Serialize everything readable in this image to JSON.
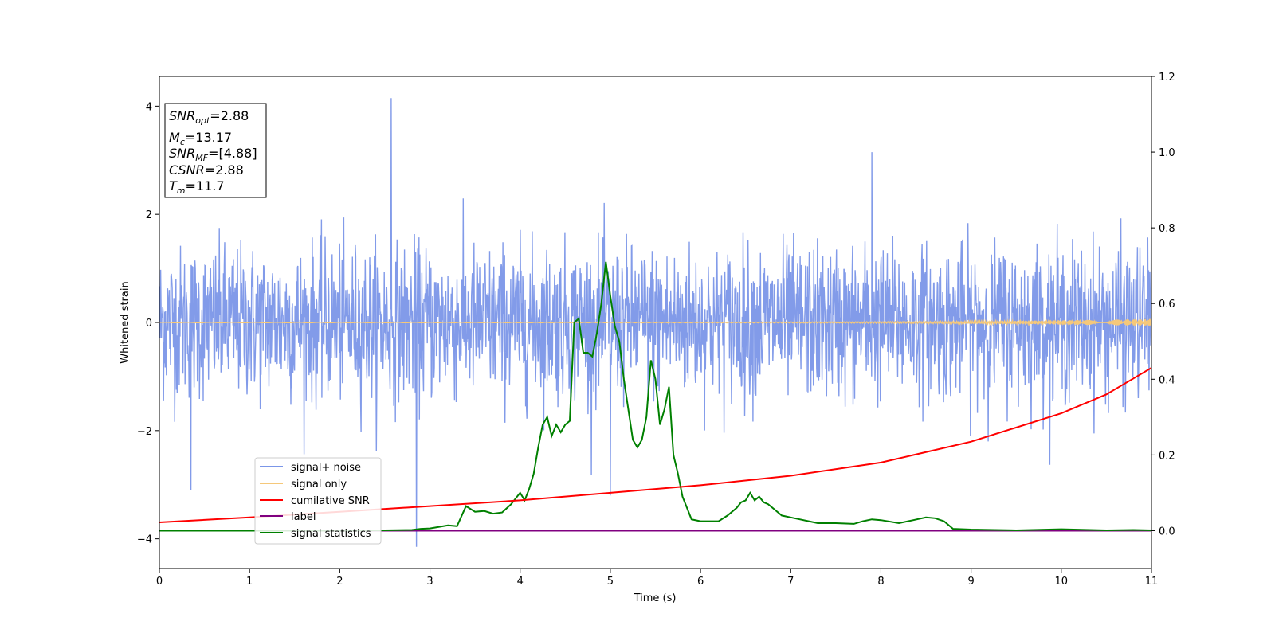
{
  "chart_data": {
    "type": "line",
    "xlabel": "Time (s)",
    "ylabel": "Whitened strain",
    "xlim": [
      0,
      11
    ],
    "ylim": [
      -4.55,
      4.55
    ],
    "y2lim": [
      -0.1,
      1.2
    ],
    "x_ticks": [
      "0",
      "1",
      "2",
      "3",
      "4",
      "5",
      "6",
      "7",
      "8",
      "9",
      "10",
      "11"
    ],
    "y_ticks": [
      "4",
      "2",
      "0",
      "−2",
      "−4"
    ],
    "y2_ticks": [
      "1.2",
      "1.0",
      "0.8",
      "0.6",
      "0.4",
      "0.2",
      "0.0"
    ],
    "grid": false,
    "legend_position": "lower-left",
    "colors": {
      "signal_noise": "#7b96e8",
      "signal_only": "#f5c87a",
      "cumulative_snr": "#ff0000",
      "label": "#800080",
      "signal_statistics": "#008000"
    },
    "series": [
      {
        "name": "signal+ noise",
        "axis": "left",
        "kind": "noise",
        "sigma": 0.7,
        "notable_peaks": [
          [
            2.57,
            4.15
          ],
          [
            2.85,
            -4.15
          ],
          [
            0.35,
            -3.1
          ],
          [
            5.0,
            -3.2
          ],
          [
            7.9,
            3.15
          ],
          [
            11.0,
            3.0
          ]
        ]
      },
      {
        "name": "signal only",
        "axis": "left",
        "x": [
          0,
          11
        ],
        "y": [
          0,
          0
        ]
      },
      {
        "name": "cumilative SNR",
        "axis": "right",
        "x": [
          0,
          1,
          2,
          3,
          4,
          5,
          6,
          7,
          8,
          9,
          10,
          10.5,
          11
        ],
        "y": [
          0.022,
          0.035,
          0.05,
          0.065,
          0.08,
          0.1,
          0.12,
          0.145,
          0.18,
          0.235,
          0.31,
          0.36,
          0.43
        ]
      },
      {
        "name": "label",
        "axis": "right",
        "x": [
          0,
          11
        ],
        "y": [
          0,
          0
        ]
      },
      {
        "name": "signal statistics",
        "axis": "right",
        "x": [
          0,
          0.5,
          1,
          1.5,
          2,
          2.5,
          2.8,
          2.9,
          3.0,
          3.2,
          3.3,
          3.4,
          3.5,
          3.6,
          3.7,
          3.8,
          3.9,
          4.0,
          4.05,
          4.1,
          4.15,
          4.2,
          4.25,
          4.3,
          4.35,
          4.4,
          4.45,
          4.5,
          4.55,
          4.6,
          4.65,
          4.7,
          4.75,
          4.8,
          4.85,
          4.9,
          4.95,
          5.0,
          5.05,
          5.1,
          5.15,
          5.2,
          5.25,
          5.3,
          5.35,
          5.4,
          5.45,
          5.5,
          5.55,
          5.6,
          5.65,
          5.7,
          5.75,
          5.8,
          5.9,
          6.0,
          6.2,
          6.3,
          6.4,
          6.45,
          6.5,
          6.55,
          6.6,
          6.65,
          6.7,
          6.75,
          6.8,
          6.9,
          7.0,
          7.1,
          7.2,
          7.3,
          7.5,
          7.7,
          7.8,
          7.9,
          8.0,
          8.2,
          8.4,
          8.5,
          8.6,
          8.7,
          8.8,
          9.0,
          9.5,
          10.0,
          10.5,
          10.8,
          11.0
        ],
        "y": [
          0.0,
          0.0,
          0.0,
          0.0,
          0.0,
          0.001,
          0.002,
          0.005,
          0.006,
          0.014,
          0.012,
          0.065,
          0.05,
          0.052,
          0.045,
          0.048,
          0.07,
          0.1,
          0.08,
          0.11,
          0.15,
          0.22,
          0.28,
          0.3,
          0.25,
          0.28,
          0.26,
          0.28,
          0.29,
          0.55,
          0.56,
          0.47,
          0.47,
          0.46,
          0.52,
          0.6,
          0.71,
          0.62,
          0.54,
          0.5,
          0.4,
          0.32,
          0.24,
          0.22,
          0.24,
          0.3,
          0.45,
          0.4,
          0.28,
          0.32,
          0.38,
          0.2,
          0.15,
          0.09,
          0.03,
          0.025,
          0.025,
          0.04,
          0.06,
          0.075,
          0.08,
          0.1,
          0.08,
          0.09,
          0.075,
          0.07,
          0.06,
          0.04,
          0.035,
          0.03,
          0.025,
          0.02,
          0.02,
          0.018,
          0.025,
          0.03,
          0.028,
          0.02,
          0.03,
          0.035,
          0.033,
          0.025,
          0.005,
          0.003,
          0.001,
          0.004,
          0.001,
          0.002,
          0.001
        ]
      }
    ]
  },
  "annotation": {
    "snr_opt": {
      "sym": "SNR",
      "sub": "opt",
      "value": "=2.88"
    },
    "mc": {
      "sym": "M",
      "sub": "c",
      "value": "=13.17"
    },
    "snr_mf": {
      "sym": "SNR",
      "sub": "MF",
      "value": "=[4.88]"
    },
    "csnr": {
      "sym": "CSNR",
      "value": "=2.88"
    },
    "tm": {
      "sym": "T",
      "sub": "m",
      "value": "=11.7"
    }
  },
  "legend": {
    "items": [
      {
        "label": "signal+ noise",
        "color": "#7b96e8"
      },
      {
        "label": "signal only",
        "color": "#f5c87a"
      },
      {
        "label": "cumilative SNR",
        "color": "#ff0000"
      },
      {
        "label": "label",
        "color": "#800080"
      },
      {
        "label": "signal statistics",
        "color": "#008000"
      }
    ]
  }
}
